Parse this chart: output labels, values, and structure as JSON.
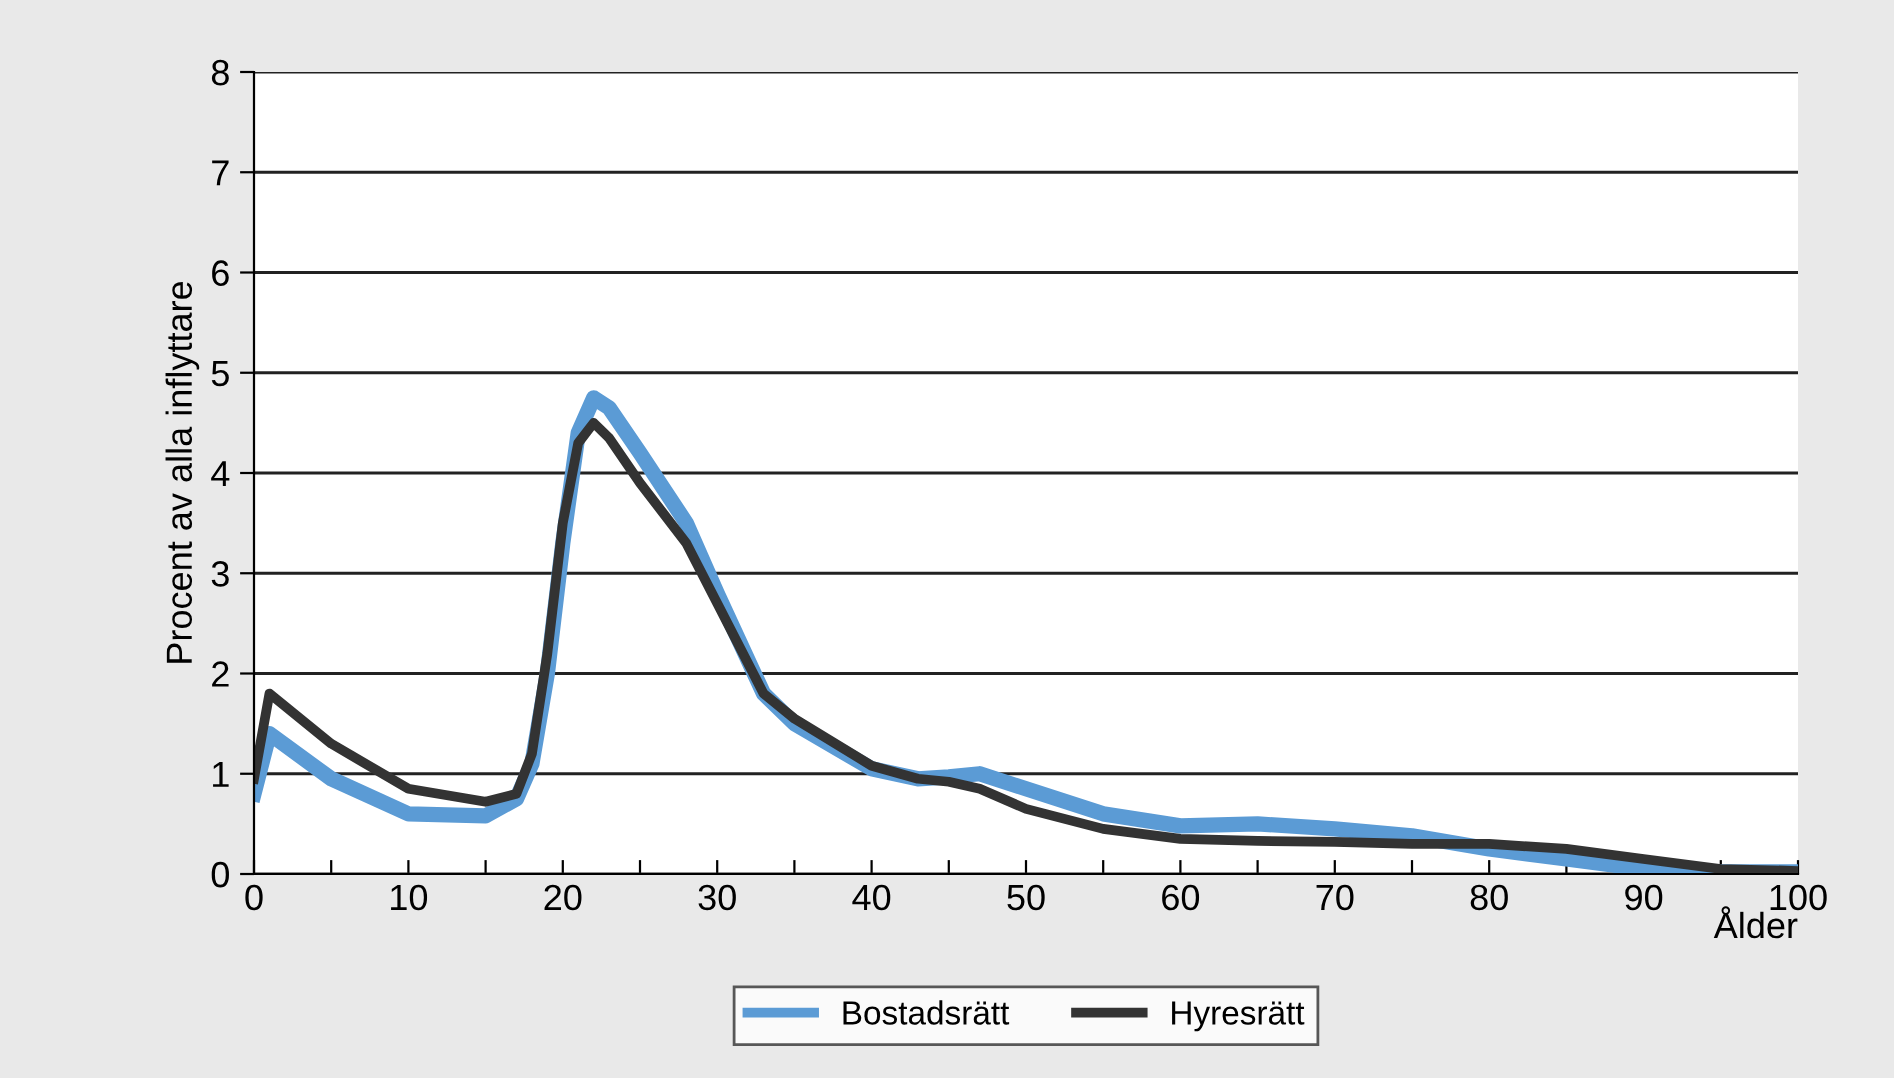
{
  "chart_data": {
    "type": "line",
    "ylabel": "Procent av alla inflyttare",
    "xlabel": "Ålder",
    "x": [
      0,
      1,
      5,
      10,
      15,
      17,
      18,
      19,
      20,
      21,
      22,
      23,
      25,
      28,
      30,
      33,
      35,
      40,
      43,
      45,
      47,
      50,
      55,
      60,
      65,
      70,
      75,
      80,
      85,
      90,
      95,
      100
    ],
    "series": [
      {
        "name": "Bostadsrätt",
        "color": "#5b9bd5",
        "values": [
          0.8,
          1.4,
          0.95,
          0.6,
          0.58,
          0.75,
          1.1,
          2.0,
          3.3,
          4.4,
          4.75,
          4.65,
          4.2,
          3.5,
          2.8,
          1.8,
          1.5,
          1.05,
          0.95,
          0.97,
          1.0,
          0.85,
          0.6,
          0.48,
          0.5,
          0.45,
          0.38,
          0.25,
          0.15,
          0.05,
          0.02,
          0.02
        ]
      },
      {
        "name": "Hyresrätt",
        "color": "#333333",
        "values": [
          0.95,
          1.8,
          1.3,
          0.85,
          0.72,
          0.8,
          1.2,
          2.2,
          3.5,
          4.3,
          4.5,
          4.35,
          3.9,
          3.3,
          2.7,
          1.8,
          1.55,
          1.08,
          0.95,
          0.92,
          0.85,
          0.65,
          0.45,
          0.35,
          0.33,
          0.32,
          0.3,
          0.3,
          0.25,
          0.15,
          0.05,
          0.03
        ]
      }
    ],
    "xlim": [
      0,
      100
    ],
    "ylim": [
      0,
      8
    ],
    "xticks": [
      0,
      {
        "value": 5,
        "label": null
      },
      10,
      {
        "value": 15,
        "label": null
      },
      20,
      {
        "value": 25,
        "label": null
      },
      30,
      {
        "value": 35,
        "label": null
      },
      40,
      {
        "value": 45,
        "label": null
      },
      50,
      {
        "value": 55,
        "label": null
      },
      60,
      {
        "value": 65,
        "label": null
      },
      70,
      {
        "value": 75,
        "label": null
      },
      80,
      {
        "value": 85,
        "label": null
      },
      90,
      {
        "value": 95,
        "label": null
      },
      100
    ],
    "yticks": [
      0,
      1,
      2,
      3,
      4,
      5,
      6,
      7,
      8
    ],
    "grid": "y",
    "legend": "bottom",
    "marker": "none",
    "line_style": "solid"
  }
}
